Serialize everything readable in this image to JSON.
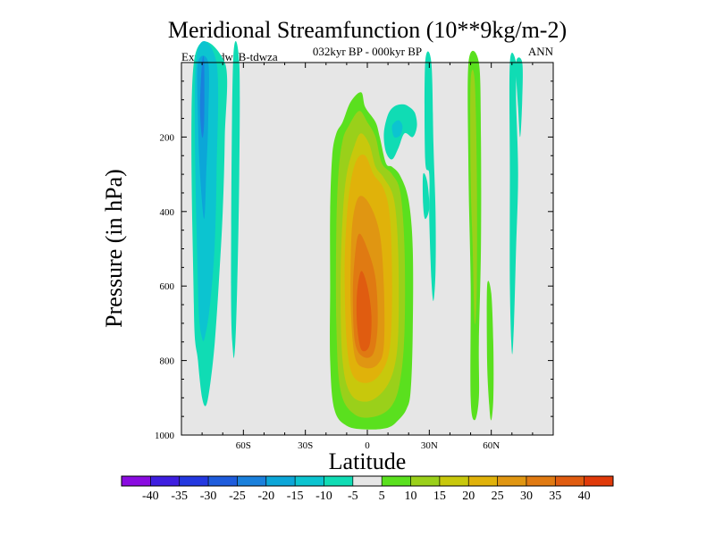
{
  "chart_data": {
    "type": "heatmap",
    "title": "Meridional Streamfunction (10**9kg/m-2)",
    "subtitle": "032kyr BP - 000kyr BP",
    "left_label": "Expt = tdwzB-tdwza",
    "right_label": "ANN",
    "xlabel": "Latitude",
    "ylabel": "Pressure (in hPa)",
    "xlim": [
      -90,
      90
    ],
    "ylim": [
      1000,
      0
    ],
    "x_ticks": [
      {
        "value": -60,
        "label": "60S"
      },
      {
        "value": -30,
        "label": "30S"
      },
      {
        "value": 0,
        "label": "0"
      },
      {
        "value": 30,
        "label": "30N"
      },
      {
        "value": 60,
        "label": "60N"
      }
    ],
    "y_ticks": [
      {
        "value": 200,
        "label": "200"
      },
      {
        "value": 400,
        "label": "400"
      },
      {
        "value": 600,
        "label": "600"
      },
      {
        "value": 800,
        "label": "800"
      },
      {
        "value": 1000,
        "label": "1000"
      }
    ],
    "background_color": "#e6e6e6",
    "colorbar": {
      "labels": [
        "-40",
        "-35",
        "-30",
        "-25",
        "-20",
        "-15",
        "-10",
        "-5",
        "5",
        "10",
        "15",
        "20",
        "25",
        "30",
        "35",
        "40"
      ],
      "colors": [
        "#8a0be0",
        "#3e1ee0",
        "#2338e0",
        "#1e5cdc",
        "#1a80dc",
        "#0ca6d8",
        "#0cc4d0",
        "#10dcb4",
        "#e6e6e6",
        "#5ae01e",
        "#9ad01a",
        "#c8c80c",
        "#e0b20a",
        "#e09612",
        "#e07a12",
        "#e05c10",
        "#e03a0a"
      ]
    },
    "regions": [
      {
        "level": -5,
        "color": "#10dcb4",
        "boundary": [
          [
            -84,
            0
          ],
          [
            -69,
            0
          ],
          [
            -69,
            200
          ],
          [
            -70,
            400
          ],
          [
            -72,
            600
          ],
          [
            -74,
            760
          ],
          [
            -76,
            860
          ],
          [
            -78,
            920
          ],
          [
            -80,
            900
          ],
          [
            -82,
            800
          ],
          [
            -84,
            650
          ]
        ]
      },
      {
        "level": -10,
        "color": "#0cc4d0",
        "boundary": [
          [
            -83,
            0
          ],
          [
            -73,
            0
          ],
          [
            -73,
            300
          ],
          [
            -74,
            500
          ],
          [
            -76,
            640
          ],
          [
            -78,
            720
          ],
          [
            -80,
            740
          ],
          [
            -82,
            600
          ]
        ]
      },
      {
        "level": -15,
        "color": "#0ca6d8",
        "boundary": [
          [
            -82,
            0
          ],
          [
            -77,
            0
          ],
          [
            -77,
            150
          ],
          [
            -78,
            300
          ],
          [
            -79,
            420
          ],
          [
            -81,
            300
          ],
          [
            -82,
            150
          ]
        ]
      },
      {
        "level": -20,
        "color": "#1a80dc",
        "boundary": [
          [
            -80,
            0
          ],
          [
            -79,
            0
          ],
          [
            -79,
            160
          ],
          [
            -80,
            200
          ],
          [
            -81,
            120
          ]
        ]
      },
      {
        "level": -5,
        "color": "#10dcb4",
        "boundary": [
          [
            -65,
            0
          ],
          [
            -62,
            0
          ],
          [
            -62,
            300
          ],
          [
            -63,
            600
          ],
          [
            -64,
            760
          ],
          [
            -65,
            780
          ],
          [
            -66,
            600
          ]
        ]
      },
      {
        "level": 5,
        "color": "#5ae01e",
        "boundary": [
          [
            -12,
            160
          ],
          [
            -8,
            105
          ],
          [
            -3,
            80
          ],
          [
            -1,
            120
          ],
          [
            4,
            160
          ],
          [
            6,
            200
          ],
          [
            9,
            270
          ],
          [
            12,
            280
          ],
          [
            16,
            305
          ],
          [
            20,
            370
          ],
          [
            22,
            500
          ],
          [
            22,
            720
          ],
          [
            21,
            880
          ],
          [
            19,
            930
          ],
          [
            15,
            960
          ],
          [
            10,
            980
          ],
          [
            0,
            985
          ],
          [
            -10,
            975
          ],
          [
            -16,
            930
          ],
          [
            -18,
            800
          ],
          [
            -18,
            600
          ],
          [
            -18,
            400
          ],
          [
            -17,
            250
          ],
          [
            -15,
            190
          ]
        ]
      },
      {
        "level": 10,
        "color": "#9ad01a",
        "boundary": [
          [
            -9,
            170
          ],
          [
            -4,
            130
          ],
          [
            0,
            160
          ],
          [
            4,
            200
          ],
          [
            7,
            270
          ],
          [
            12,
            300
          ],
          [
            16,
            350
          ],
          [
            18,
            500
          ],
          [
            18,
            720
          ],
          [
            16,
            850
          ],
          [
            12,
            920
          ],
          [
            4,
            950
          ],
          [
            -6,
            945
          ],
          [
            -13,
            880
          ],
          [
            -15,
            700
          ],
          [
            -15,
            450
          ],
          [
            -14,
            300
          ],
          [
            -12,
            210
          ]
        ]
      },
      {
        "level": 15,
        "color": "#c8c80c",
        "boundary": [
          [
            -6,
            220
          ],
          [
            -3,
            190
          ],
          [
            1,
            220
          ],
          [
            4,
            280
          ],
          [
            8,
            310
          ],
          [
            13,
            370
          ],
          [
            15,
            520
          ],
          [
            15,
            720
          ],
          [
            13,
            820
          ],
          [
            8,
            880
          ],
          [
            0,
            910
          ],
          [
            -8,
            890
          ],
          [
            -12,
            800
          ],
          [
            -13,
            600
          ],
          [
            -12,
            420
          ],
          [
            -10,
            300
          ]
        ]
      },
      {
        "level": 20,
        "color": "#e0b20a",
        "boundary": [
          [
            -5,
            260
          ],
          [
            -1,
            250
          ],
          [
            3,
            300
          ],
          [
            8,
            340
          ],
          [
            11,
            420
          ],
          [
            12,
            600
          ],
          [
            11,
            760
          ],
          [
            7,
            830
          ],
          [
            0,
            860
          ],
          [
            -7,
            840
          ],
          [
            -10,
            750
          ],
          [
            -11,
            560
          ],
          [
            -10,
            420
          ],
          [
            -8,
            320
          ]
        ]
      },
      {
        "level": 25,
        "color": "#e09612",
        "boundary": [
          [
            -4,
            360
          ],
          [
            1,
            380
          ],
          [
            6,
            460
          ],
          [
            8,
            600
          ],
          [
            8,
            760
          ],
          [
            5,
            810
          ],
          [
            -1,
            820
          ],
          [
            -6,
            790
          ],
          [
            -8,
            660
          ],
          [
            -8,
            520
          ],
          [
            -7,
            420
          ]
        ]
      },
      {
        "level": 30,
        "color": "#e07a12",
        "boundary": [
          [
            -4,
            460
          ],
          [
            0,
            500
          ],
          [
            4,
            580
          ],
          [
            5,
            700
          ],
          [
            3,
            780
          ],
          [
            -2,
            790
          ],
          [
            -6,
            750
          ],
          [
            -7,
            620
          ],
          [
            -6,
            520
          ]
        ]
      },
      {
        "level": 35,
        "color": "#e05c10",
        "boundary": [
          [
            -3,
            560
          ],
          [
            0,
            600
          ],
          [
            2,
            680
          ],
          [
            1,
            760
          ],
          [
            -3,
            770
          ],
          [
            -5,
            700
          ],
          [
            -5,
            620
          ]
        ]
      },
      {
        "level": -5,
        "color": "#10dcb4",
        "boundary": [
          [
            8,
            190
          ],
          [
            10,
            140
          ],
          [
            13,
            118
          ],
          [
            17,
            112
          ],
          [
            20,
            118
          ],
          [
            23,
            135
          ],
          [
            24,
            170
          ],
          [
            22,
            200
          ],
          [
            18,
            190
          ],
          [
            15,
            230
          ],
          [
            12,
            260
          ],
          [
            9,
            240
          ]
        ]
      },
      {
        "level": -10,
        "color": "#0cc4d0",
        "boundary": [
          [
            12,
            170
          ],
          [
            15,
            155
          ],
          [
            17,
            170
          ],
          [
            16,
            195
          ],
          [
            13,
            200
          ]
        ]
      },
      {
        "level": -5,
        "color": "#10dcb4",
        "boundary": [
          [
            28,
            0
          ],
          [
            31,
            0
          ],
          [
            32,
            220
          ],
          [
            33,
            400
          ],
          [
            33,
            560
          ],
          [
            32,
            640
          ],
          [
            31,
            580
          ],
          [
            30,
            420
          ],
          [
            30,
            300
          ],
          [
            28,
            260
          ]
        ]
      },
      {
        "level": -5,
        "color": "#10dcb4",
        "boundary": [
          [
            27,
            300
          ],
          [
            29,
            320
          ],
          [
            30,
            390
          ],
          [
            28,
            420
          ],
          [
            27,
            380
          ]
        ]
      },
      {
        "level": 5,
        "color": "#5ae01e",
        "boundary": [
          [
            49,
            0
          ],
          [
            54,
            0
          ],
          [
            55,
            200
          ],
          [
            55,
            500
          ],
          [
            54,
            750
          ],
          [
            54,
            900
          ],
          [
            52,
            960
          ],
          [
            50,
            900
          ],
          [
            50,
            600
          ],
          [
            49,
            300
          ]
        ]
      },
      {
        "level": 10,
        "color": "#9ad01a",
        "boundary": [
          [
            50,
            50
          ],
          [
            52,
            50
          ],
          [
            53,
            300
          ],
          [
            53,
            600
          ],
          [
            52,
            700
          ],
          [
            51,
            500
          ],
          [
            50,
            300
          ]
        ]
      },
      {
        "level": 5,
        "color": "#5ae01e",
        "boundary": [
          [
            58,
            600
          ],
          [
            60,
            620
          ],
          [
            61,
            760
          ],
          [
            61,
            900
          ],
          [
            60,
            960
          ],
          [
            59,
            920
          ],
          [
            58,
            800
          ]
        ]
      },
      {
        "level": -5,
        "color": "#10dcb4",
        "boundary": [
          [
            69,
            0
          ],
          [
            72,
            0
          ],
          [
            72,
            100
          ],
          [
            73,
            300
          ],
          [
            72,
            500
          ],
          [
            71,
            700
          ],
          [
            70,
            780
          ],
          [
            69,
            600
          ],
          [
            69,
            300
          ]
        ]
      },
      {
        "level": -5,
        "color": "#10dcb4",
        "boundary": [
          [
            72,
            0
          ],
          [
            75,
            0
          ],
          [
            75,
            100
          ],
          [
            74,
            200
          ],
          [
            73,
            120
          ]
        ]
      }
    ]
  }
}
